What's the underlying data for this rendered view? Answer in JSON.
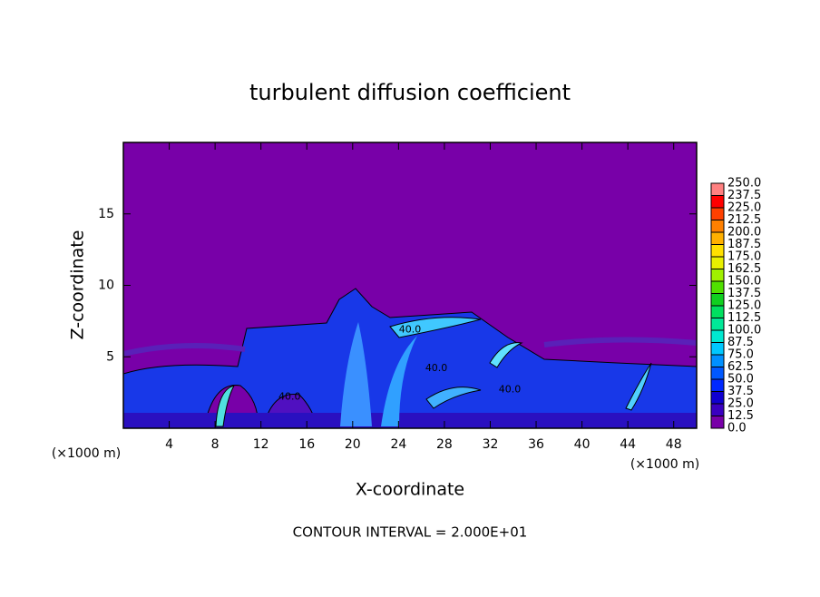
{
  "chart_data": {
    "type": "contour",
    "title": "turbulent diffusion coefficient",
    "x_label": "X-coordinate",
    "y_label": "Z-coordinate",
    "x_unit": "(×1000 m)",
    "y_unit": "(×1000 m)",
    "xlim": [
      0,
      50
    ],
    "ylim": [
      0,
      20
    ],
    "xticks": [
      4,
      8,
      12,
      16,
      20,
      24,
      28,
      32,
      36,
      40,
      44,
      48
    ],
    "yticks": [
      5,
      10,
      15
    ],
    "footer": "CONTOUR INTERVAL = 2.000E+01",
    "annotations": [
      {
        "text": "40.0",
        "x": 25.0,
        "z": 6.9
      },
      {
        "text": "40.0",
        "x": 27.3,
        "z": 4.2
      },
      {
        "text": "40.0",
        "x": 33.7,
        "z": 2.7
      },
      {
        "text": "40.0",
        "x": 14.5,
        "z": 2.2
      }
    ],
    "colorbar": {
      "levels": [
        {
          "value": 0,
          "label": "0.0"
        },
        {
          "value": 12.5,
          "label": "12.5"
        },
        {
          "value": 25,
          "label": "25.0"
        },
        {
          "value": 37.5,
          "label": "37.5"
        },
        {
          "value": 50,
          "label": "50.0"
        },
        {
          "value": 62.5,
          "label": "62.5"
        },
        {
          "value": 75,
          "label": "75.0"
        },
        {
          "value": 87.5,
          "label": "87.5"
        },
        {
          "value": 100,
          "label": "100.0"
        },
        {
          "value": 112.5,
          "label": "112.5"
        },
        {
          "value": 125,
          "label": "125.0"
        },
        {
          "value": 137.5,
          "label": "137.5"
        },
        {
          "value": 150,
          "label": "150.0"
        },
        {
          "value": 162.5,
          "label": "162.5"
        },
        {
          "value": 175,
          "label": "175.0"
        },
        {
          "value": 187.5,
          "label": "187.5"
        },
        {
          "value": 200,
          "label": "200.0"
        },
        {
          "value": 212.5,
          "label": "212.5"
        },
        {
          "value": 225,
          "label": "225.0"
        },
        {
          "value": 237.5,
          "label": "237.5"
        },
        {
          "value": 250,
          "label": "250.0"
        }
      ],
      "colors": [
        "#7800a8",
        "#3a00c0",
        "#1000d0",
        "#0028ff",
        "#0058ff",
        "#0090ff",
        "#00c8ff",
        "#00e8d0",
        "#00e898",
        "#00e060",
        "#10d020",
        "#50e000",
        "#a0f000",
        "#e8f000",
        "#ffe000",
        "#ffb000",
        "#ff8000",
        "#ff4000",
        "#ff0000",
        "#ff8080"
      ]
    }
  }
}
